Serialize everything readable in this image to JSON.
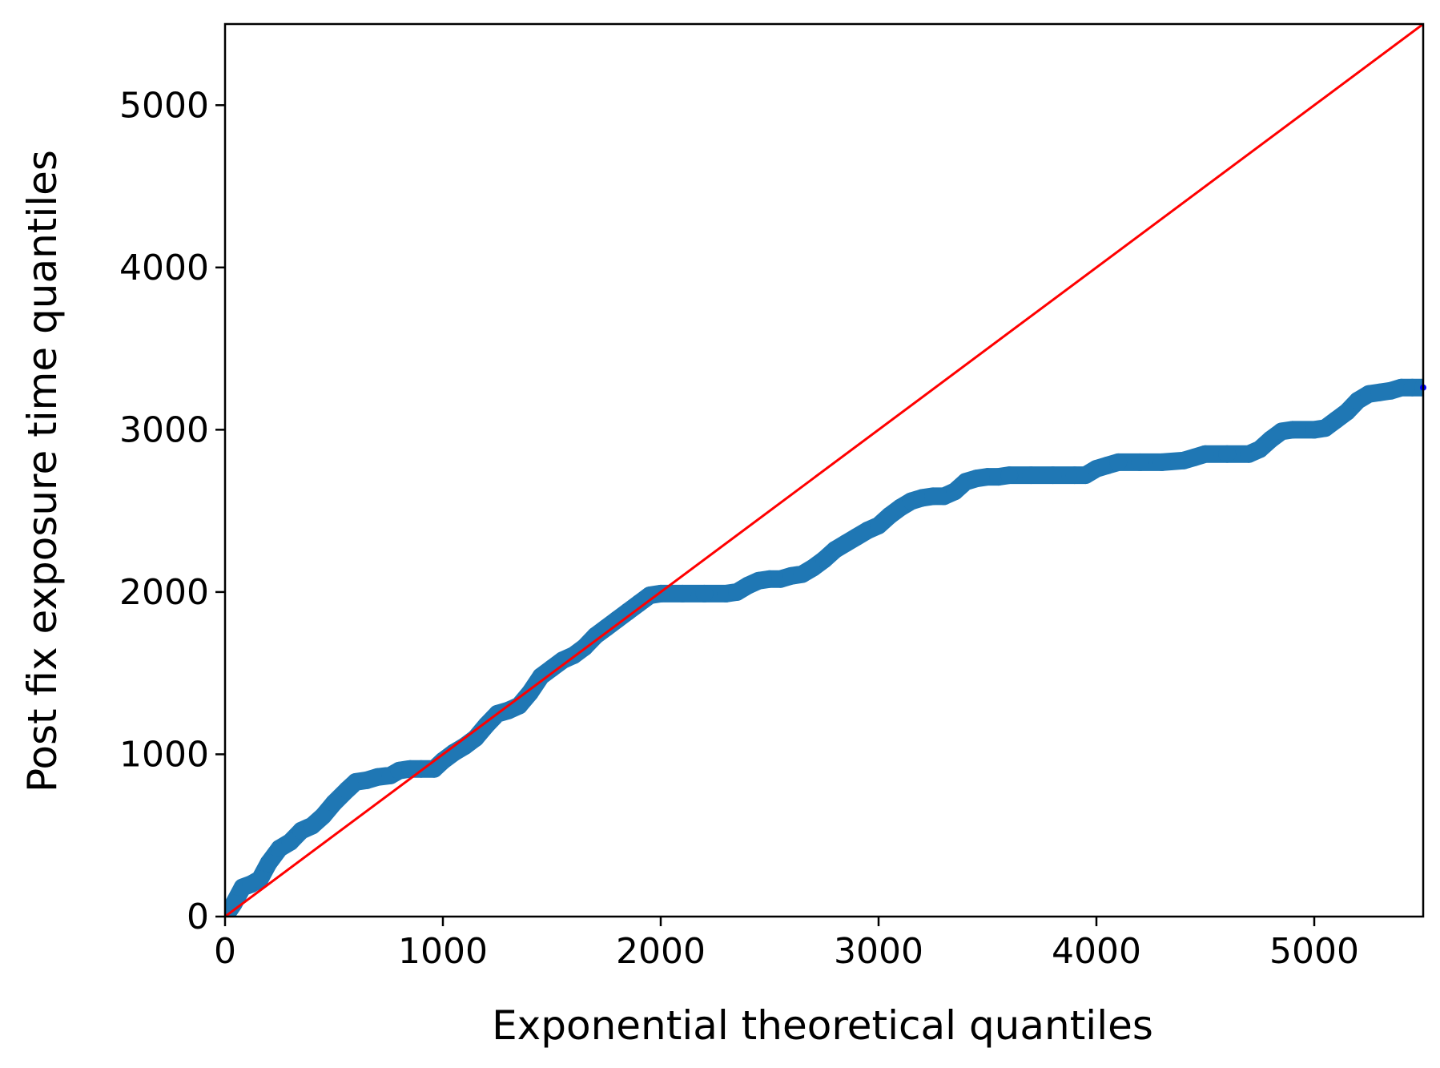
{
  "chart_data": {
    "type": "scatter",
    "title": "",
    "xlabel": "Exponential theoretical quantiles",
    "ylabel": "Post fix exposure time quantiles",
    "xlim": [
      0,
      5500
    ],
    "ylim": [
      0,
      5500
    ],
    "xticks": [
      0,
      1000,
      2000,
      3000,
      4000,
      5000
    ],
    "yticks": [
      0,
      1000,
      2000,
      3000,
      4000,
      5000
    ],
    "grid": false,
    "legend": "none",
    "series": [
      {
        "marker_color": "#1f77b4",
        "points": [
          [
            0,
            0
          ],
          [
            40,
            80
          ],
          [
            80,
            180
          ],
          [
            120,
            200
          ],
          [
            160,
            230
          ],
          [
            200,
            330
          ],
          [
            250,
            420
          ],
          [
            300,
            460
          ],
          [
            350,
            530
          ],
          [
            400,
            560
          ],
          [
            450,
            620
          ],
          [
            500,
            700
          ],
          [
            560,
            780
          ],
          [
            600,
            830
          ],
          [
            650,
            840
          ],
          [
            700,
            860
          ],
          [
            760,
            870
          ],
          [
            800,
            900
          ],
          [
            850,
            910
          ],
          [
            900,
            910
          ],
          [
            960,
            910
          ],
          [
            1000,
            960
          ],
          [
            1050,
            1010
          ],
          [
            1100,
            1050
          ],
          [
            1150,
            1100
          ],
          [
            1200,
            1180
          ],
          [
            1250,
            1250
          ],
          [
            1300,
            1270
          ],
          [
            1350,
            1300
          ],
          [
            1400,
            1380
          ],
          [
            1450,
            1480
          ],
          [
            1500,
            1530
          ],
          [
            1550,
            1580
          ],
          [
            1600,
            1610
          ],
          [
            1650,
            1660
          ],
          [
            1700,
            1730
          ],
          [
            1750,
            1780
          ],
          [
            1800,
            1830
          ],
          [
            1850,
            1880
          ],
          [
            1900,
            1930
          ],
          [
            1950,
            1980
          ],
          [
            2000,
            1990
          ],
          [
            2100,
            1990
          ],
          [
            2200,
            1990
          ],
          [
            2300,
            1990
          ],
          [
            2350,
            2000
          ],
          [
            2400,
            2040
          ],
          [
            2450,
            2070
          ],
          [
            2500,
            2080
          ],
          [
            2550,
            2080
          ],
          [
            2600,
            2100
          ],
          [
            2650,
            2110
          ],
          [
            2700,
            2150
          ],
          [
            2750,
            2200
          ],
          [
            2800,
            2260
          ],
          [
            2850,
            2300
          ],
          [
            2900,
            2340
          ],
          [
            2950,
            2380
          ],
          [
            3000,
            2410
          ],
          [
            3050,
            2470
          ],
          [
            3100,
            2520
          ],
          [
            3150,
            2560
          ],
          [
            3200,
            2580
          ],
          [
            3250,
            2590
          ],
          [
            3300,
            2590
          ],
          [
            3350,
            2620
          ],
          [
            3400,
            2680
          ],
          [
            3450,
            2700
          ],
          [
            3500,
            2710
          ],
          [
            3550,
            2710
          ],
          [
            3600,
            2720
          ],
          [
            3700,
            2720
          ],
          [
            3800,
            2720
          ],
          [
            3900,
            2720
          ],
          [
            3950,
            2720
          ],
          [
            4000,
            2760
          ],
          [
            4050,
            2780
          ],
          [
            4100,
            2800
          ],
          [
            4200,
            2800
          ],
          [
            4300,
            2800
          ],
          [
            4400,
            2810
          ],
          [
            4450,
            2830
          ],
          [
            4500,
            2850
          ],
          [
            4600,
            2850
          ],
          [
            4700,
            2850
          ],
          [
            4750,
            2880
          ],
          [
            4800,
            2940
          ],
          [
            4850,
            2990
          ],
          [
            4900,
            3000
          ],
          [
            5000,
            3000
          ],
          [
            5050,
            3010
          ],
          [
            5100,
            3060
          ],
          [
            5150,
            3110
          ],
          [
            5200,
            3180
          ],
          [
            5250,
            3220
          ],
          [
            5300,
            3230
          ],
          [
            5350,
            3240
          ],
          [
            5400,
            3260
          ],
          [
            5450,
            3260
          ],
          [
            5500,
            3260
          ]
        ]
      }
    ],
    "reference_line": {
      "from": [
        0,
        0
      ],
      "to": [
        5500,
        5500
      ],
      "color": "#ff0000"
    },
    "end_marker": {
      "x": 5500,
      "y": 3260,
      "color": "#0000ff"
    }
  }
}
